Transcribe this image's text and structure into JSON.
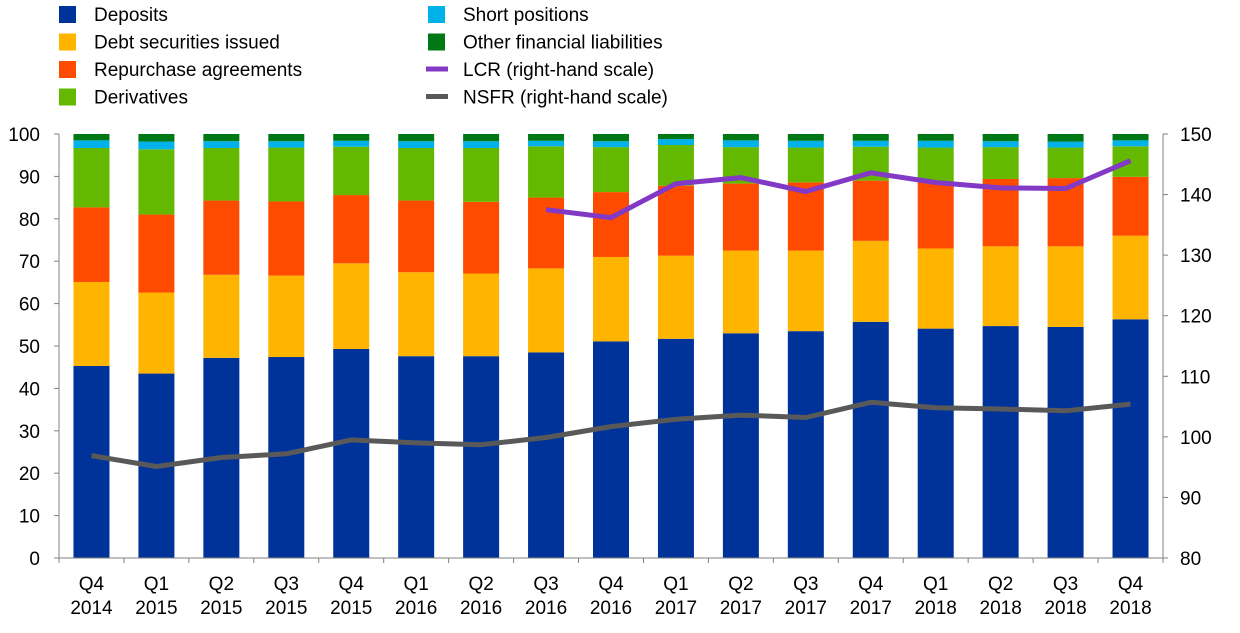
{
  "chart_data": {
    "type": "bar",
    "stacked": true,
    "categories": [
      [
        "Q4",
        "2014"
      ],
      [
        "Q1",
        "2015"
      ],
      [
        "Q2",
        "2015"
      ],
      [
        "Q3",
        "2015"
      ],
      [
        "Q4",
        "2015"
      ],
      [
        "Q1",
        "2016"
      ],
      [
        "Q2",
        "2016"
      ],
      [
        "Q3",
        "2016"
      ],
      [
        "Q4",
        "2016"
      ],
      [
        "Q1",
        "2017"
      ],
      [
        "Q2",
        "2017"
      ],
      [
        "Q3",
        "2017"
      ],
      [
        "Q4",
        "2017"
      ],
      [
        "Q1",
        "2018"
      ],
      [
        "Q2",
        "2018"
      ],
      [
        "Q3",
        "2018"
      ],
      [
        "Q4",
        "2018"
      ]
    ],
    "series": [
      {
        "name": "Deposits",
        "color": "#003399",
        "values": [
          45.3,
          43.5,
          47.2,
          47.4,
          49.3,
          47.6,
          47.6,
          48.5,
          51.1,
          51.7,
          53.0,
          53.5,
          55.7,
          54.1,
          54.7,
          54.5,
          56.3
        ]
      },
      {
        "name": "Debt securities issued",
        "color": "#FFB400",
        "values": [
          19.8,
          19.1,
          19.6,
          19.2,
          20.2,
          19.8,
          19.5,
          19.8,
          19.9,
          19.6,
          19.5,
          19.0,
          19.1,
          18.9,
          18.8,
          19.0,
          19.7
        ]
      },
      {
        "name": "Repurchase agreements",
        "color": "#FF4B00",
        "values": [
          17.6,
          18.4,
          17.5,
          17.5,
          16.1,
          16.9,
          16.9,
          16.7,
          15.3,
          16.5,
          15.8,
          16.1,
          14.2,
          15.6,
          15.9,
          16.1,
          13.9
        ]
      },
      {
        "name": "Derivatives",
        "color": "#65B800",
        "values": [
          14.0,
          15.4,
          12.4,
          12.7,
          11.4,
          12.4,
          12.7,
          12.1,
          10.6,
          9.6,
          8.6,
          8.2,
          8.0,
          8.2,
          7.5,
          7.2,
          7.2
        ]
      },
      {
        "name": "Short positions",
        "color": "#00B1EA",
        "values": [
          1.8,
          1.8,
          1.6,
          1.5,
          1.4,
          1.6,
          1.6,
          1.3,
          1.4,
          1.4,
          1.6,
          1.6,
          1.4,
          1.6,
          1.4,
          1.4,
          1.4
        ]
      },
      {
        "name": "Other financial liabilities",
        "color": "#007816",
        "values": [
          1.5,
          1.8,
          1.7,
          1.7,
          1.6,
          1.7,
          1.7,
          1.6,
          1.7,
          1.2,
          1.5,
          1.6,
          1.6,
          1.6,
          1.7,
          1.8,
          1.5
        ]
      }
    ],
    "lines": [
      {
        "name": "LCR (right-hand scale)",
        "color": "#8139C6",
        "values": [
          null,
          null,
          null,
          null,
          null,
          null,
          null,
          137.5,
          136.2,
          141.8,
          142.8,
          140.5,
          143.6,
          142.0,
          141.1,
          141.0,
          145.6
        ]
      },
      {
        "name": "NSFR (right-hand scale)",
        "color": "#595959",
        "values": [
          96.9,
          95.1,
          96.6,
          97.2,
          99.5,
          99.0,
          98.7,
          99.9,
          101.7,
          102.9,
          103.6,
          103.2,
          105.7,
          104.8,
          104.6,
          104.3,
          105.4
        ]
      }
    ],
    "ylim": [
      0,
      100
    ],
    "yticks": [
      0,
      10,
      20,
      30,
      40,
      50,
      60,
      70,
      80,
      90,
      100
    ],
    "y2lim": [
      80,
      150
    ],
    "y2ticks": [
      80,
      90,
      100,
      110,
      120,
      130,
      140,
      150
    ],
    "legend_position": "top-left, two columns"
  }
}
